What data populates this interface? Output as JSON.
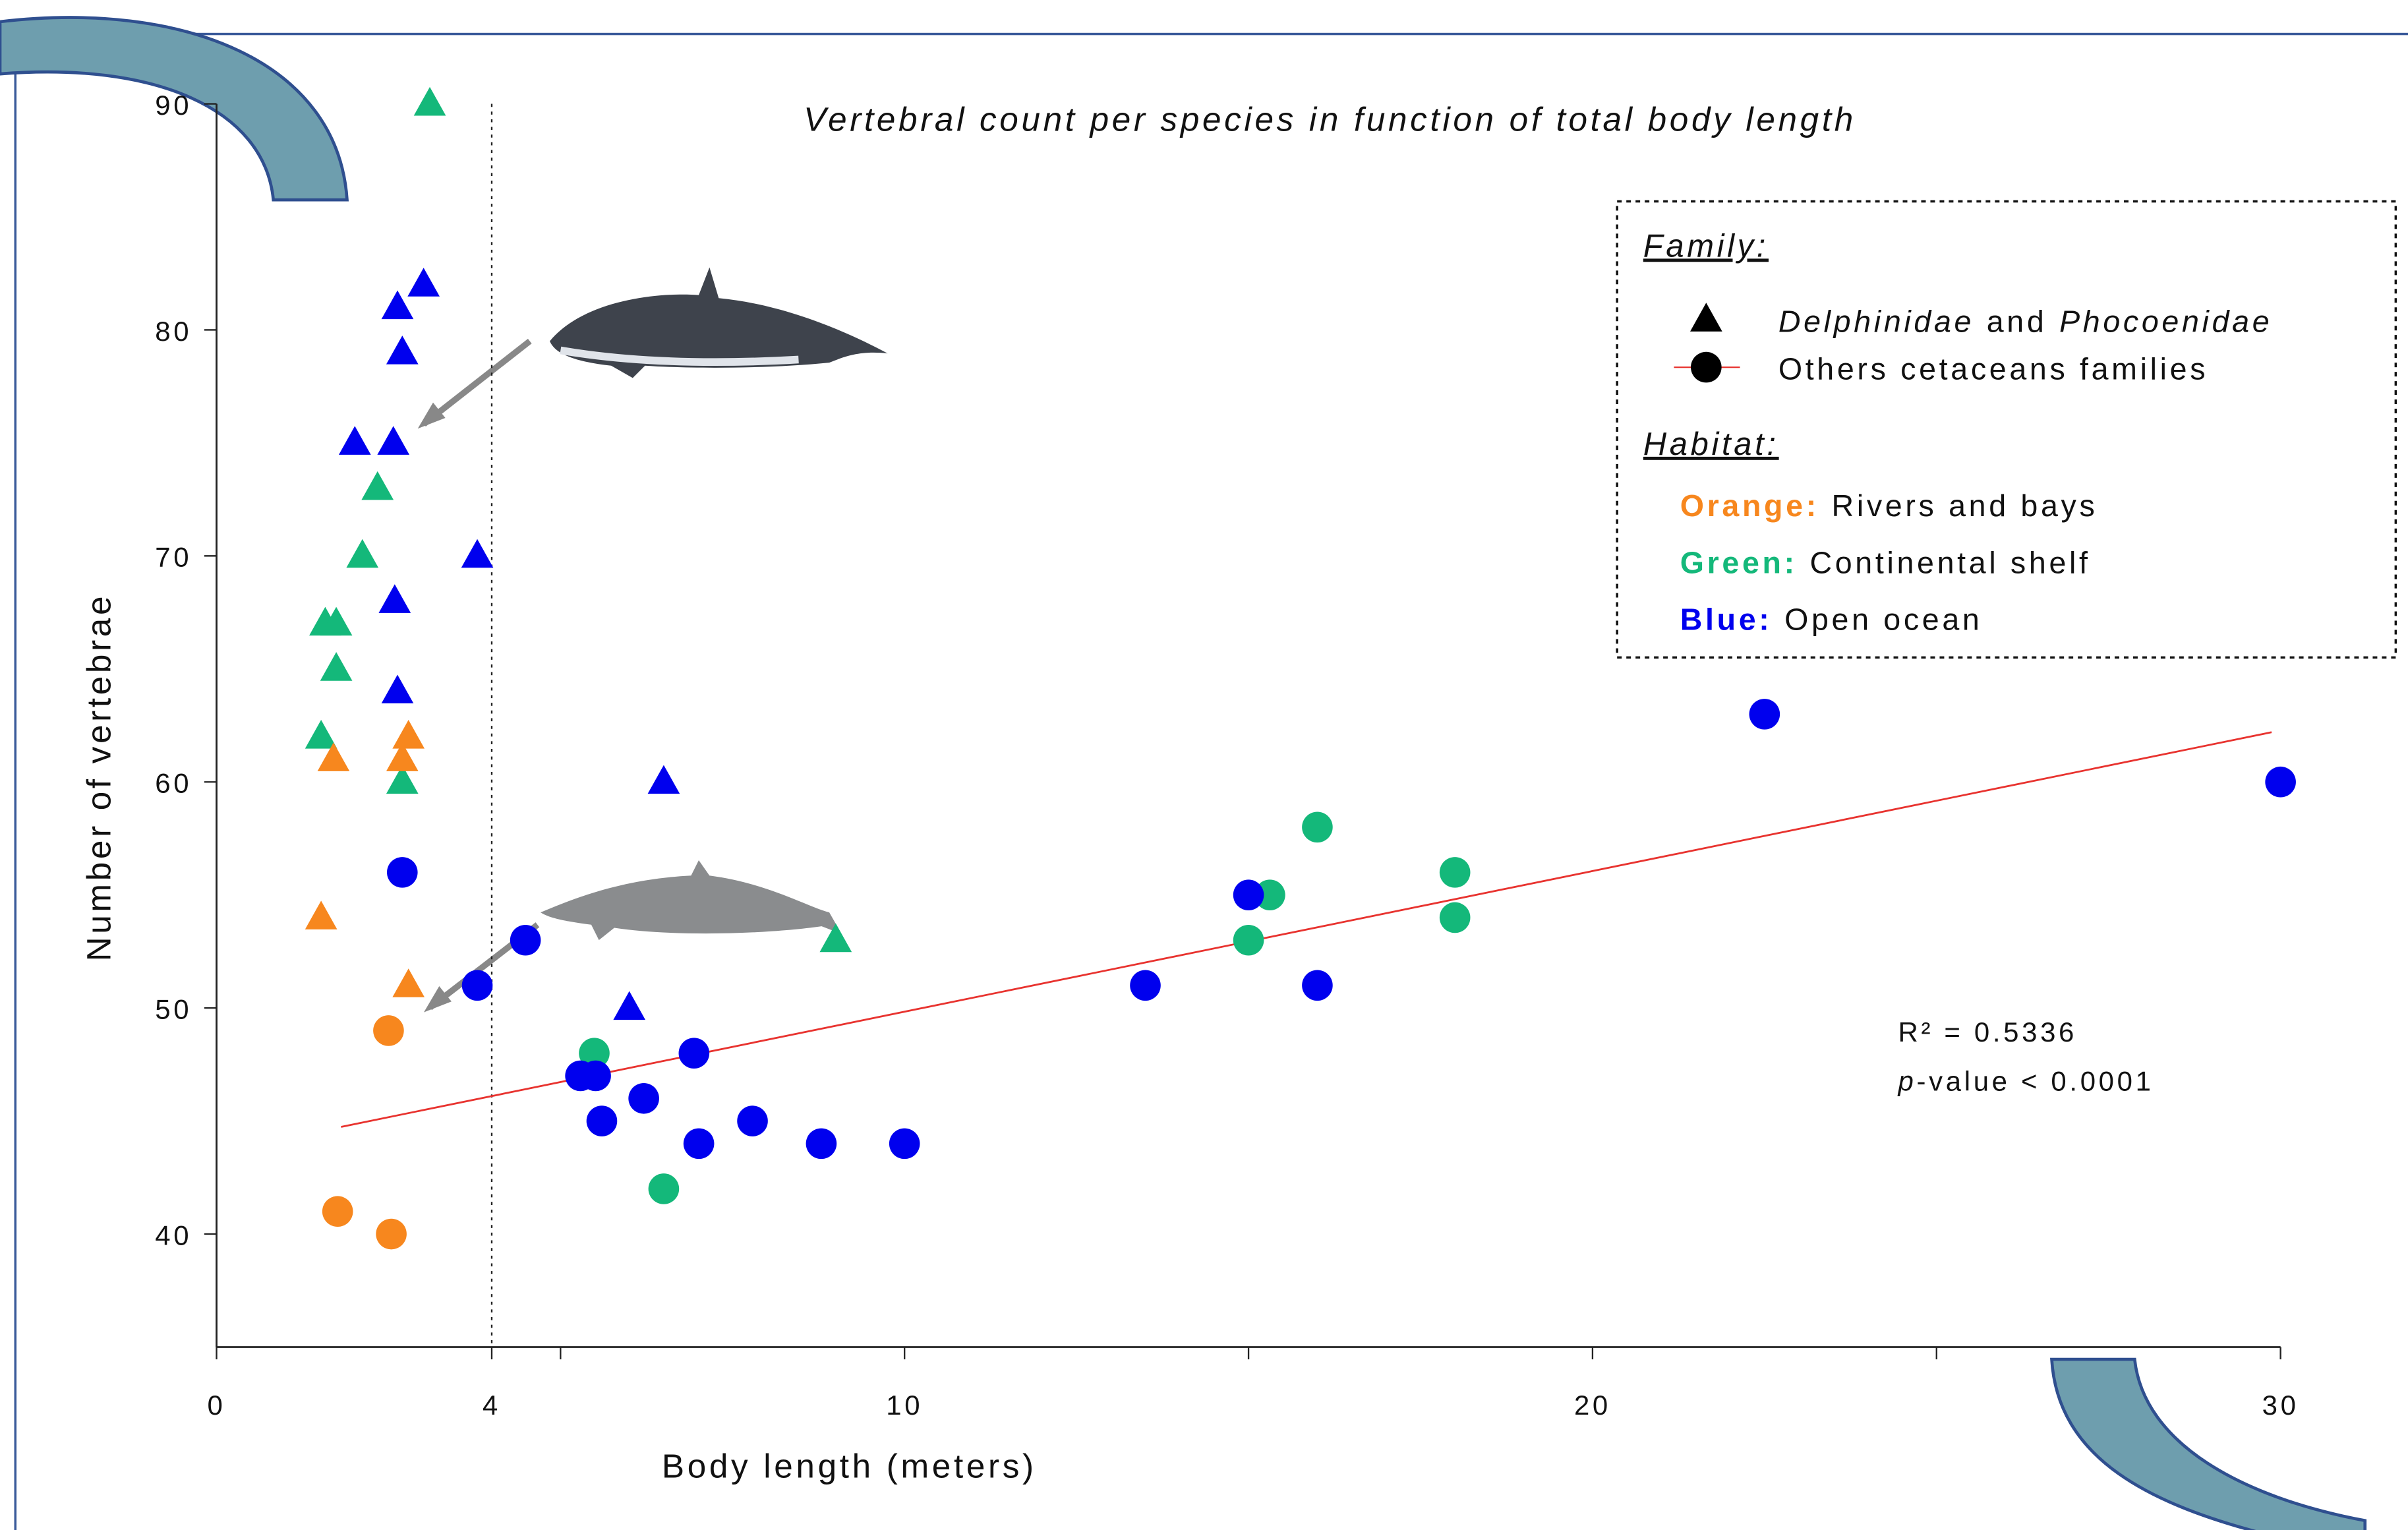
{
  "chart_data": {
    "type": "scatter",
    "title": "Vertebral count per species in function of total body length",
    "x_label": "Body length (meters)",
    "y_label": "Number of vertebrae",
    "xlim": [
      0,
      30
    ],
    "ylim": [
      35,
      90
    ],
    "xticks": [
      0,
      4,
      10,
      20,
      30
    ],
    "xminor_ticks": [
      5,
      15,
      25
    ],
    "yticks": [
      40,
      50,
      60,
      70,
      80,
      90
    ],
    "ref_line_x": 4,
    "trend": {
      "color": "#e8332f",
      "x": [
        1.81,
        29.87
      ],
      "y": [
        44.74,
        62.2
      ]
    },
    "annotation": {
      "r2": "R² = 0.5336",
      "p_symbol": "p",
      "p_text": "-value < 0.0001"
    },
    "legend": {
      "family_title": "Family:",
      "family_items": [
        {
          "marker": "triangle",
          "parts": [
            "Delphinidae",
            "and",
            "Phocoenidae"
          ]
        },
        {
          "marker": "circle",
          "parts": [
            "Others cetaceans families"
          ]
        }
      ],
      "habitat_title": "Habitat:",
      "habitat_items": [
        {
          "key": "Orange:",
          "text": "Rivers and bays",
          "color": "#f7871e"
        },
        {
          "key": "Green:",
          "text": "Continental shelf",
          "color": "#14b87a"
        },
        {
          "key": "Blue:",
          "text": "Open ocean",
          "color": "#0000ee"
        }
      ]
    },
    "series": [
      {
        "marker": "triangle",
        "color": "#14b87a",
        "x": [
          3.1,
          2.34,
          2.12,
          1.58,
          1.74,
          1.74,
          1.52,
          2.7,
          9.0
        ],
        "values": [
          90,
          73,
          70,
          67,
          67,
          65,
          62,
          60,
          53
        ]
      },
      {
        "marker": "triangle",
        "color": "#f7871e",
        "x": [
          1.7,
          2.79,
          2.7,
          1.52,
          2.79
        ],
        "values": [
          61,
          62,
          61,
          54,
          51
        ]
      },
      {
        "marker": "triangle",
        "color": "#0000ee",
        "x": [
          3.01,
          2.63,
          2.7,
          2.01,
          2.57,
          3.79,
          2.59,
          2.63,
          6.5,
          6.0
        ],
        "values": [
          82,
          81,
          79,
          75,
          75,
          70,
          68,
          64,
          60,
          50
        ]
      },
      {
        "marker": "circle",
        "color": "#f7871e",
        "x": [
          2.5,
          1.76,
          2.54
        ],
        "values": [
          49,
          41,
          40
        ]
      },
      {
        "marker": "circle",
        "color": "#14b87a",
        "x": [
          5.49,
          6.5,
          15.31,
          15.0,
          16.0,
          18.0,
          18.0
        ],
        "values": [
          48,
          42,
          55,
          53,
          58,
          56,
          54
        ]
      },
      {
        "marker": "circle",
        "color": "#0000ee",
        "x": [
          2.7,
          4.49,
          3.79,
          5.29,
          5.51,
          5.6,
          6.21,
          6.94,
          7.01,
          7.79,
          8.79,
          10.0,
          13.5,
          15.0,
          16.0,
          22.5,
          30.0
        ],
        "values": [
          56,
          53,
          51,
          47,
          47,
          45,
          46,
          48,
          44,
          45,
          44,
          44,
          51,
          55,
          51,
          63,
          60
        ]
      }
    ]
  }
}
